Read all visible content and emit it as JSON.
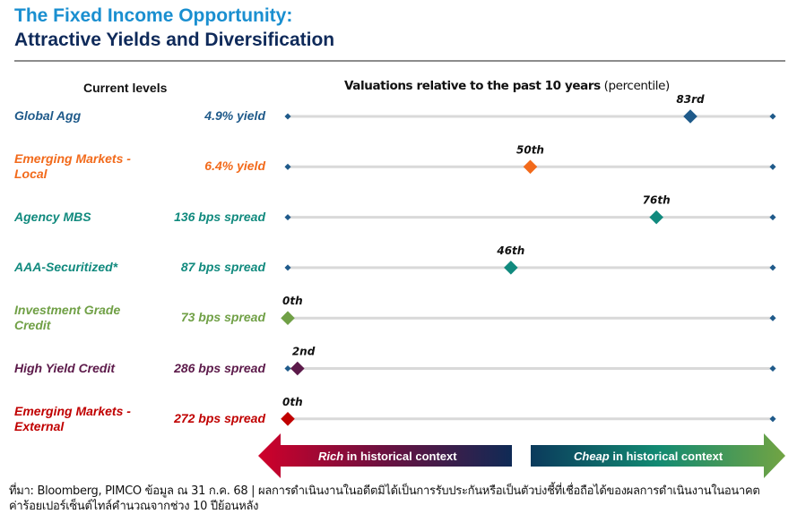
{
  "header": {
    "title_line1": "The Fixed Income Opportunity:",
    "title_line2": "Attractive Yields and Diversification"
  },
  "columns": {
    "current_levels": "Current levels",
    "valuations_bold": "Valuations relative to the past 10 years",
    "valuations_unit": "(percentile)"
  },
  "colors": {
    "line": "#d9d9d9",
    "endpoint": "#1f5a8a"
  },
  "chart_data": {
    "type": "dot-range",
    "title": "Valuations relative to the past 10 years (percentile)",
    "xlim": [
      0,
      100
    ],
    "rows": [
      {
        "name": "Global Agg",
        "level": "4.9% yield",
        "percentile": 83,
        "label": "83rd",
        "color": "#1f5a8a"
      },
      {
        "name": "Emerging Markets - Local",
        "level": "6.4% yield",
        "percentile": 50,
        "label": "50th",
        "color": "#f26a1b"
      },
      {
        "name": "Agency MBS",
        "level": "136 bps spread",
        "percentile": 76,
        "label": "76th",
        "color": "#118a7e"
      },
      {
        "name": "AAA-Securitized*",
        "level": "87 bps spread",
        "percentile": 46,
        "label": "46th",
        "color": "#118a7e"
      },
      {
        "name": "Investment Grade Credit",
        "level": "73 bps spread",
        "percentile": 0,
        "label": "0th",
        "color": "#70a046"
      },
      {
        "name": "High Yield Credit",
        "level": "286 bps spread",
        "percentile": 2,
        "label": "2nd",
        "color": "#5c1a4a"
      },
      {
        "name": "Emerging Markets - External",
        "level": "272 bps spread",
        "percentile": 0,
        "label": "0th",
        "color": "#c00000"
      }
    ]
  },
  "arrows": {
    "rich_em": "Rich",
    "rich_rest": " in historical context",
    "cheap_em": "Cheap",
    "cheap_rest": " in historical context"
  },
  "footnote": {
    "line1": "ที่มา: Bloomberg, PIMCO ข้อมูล ณ 31 ก.ค. 68 | ผลการดำเนินงานในอดีตมิได้เป็นการรับประกันหรือเป็นตัวบ่งชี้ที่เชื่อถือได้ของผลการดำเนินงานในอนาคต",
    "line2": "ค่าร้อยเปอร์เซ็นต์ไทล์คำนวณจากช่วง 10 ปีย้อนหลัง"
  }
}
